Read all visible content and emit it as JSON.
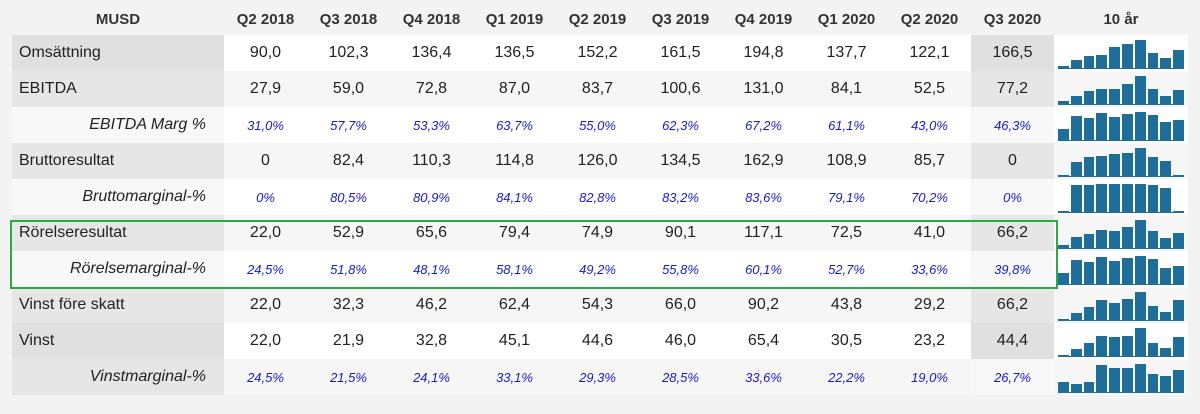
{
  "header": {
    "unit": "MUSD",
    "periods": [
      "Q2 2018",
      "Q3 2018",
      "Q4 2018",
      "Q1 2019",
      "Q2 2019",
      "Q3 2019",
      "Q4 2019",
      "Q1 2020",
      "Q2 2020",
      "Q3 2020"
    ],
    "trend_label": "10 år"
  },
  "colors": {
    "bar": "#1f6d99",
    "highlight": "#2aa84a",
    "pct_text": "#1a1acc"
  },
  "rows": [
    {
      "label": "Omsättning",
      "sub": false,
      "values": [
        "90,0",
        "102,3",
        "136,4",
        "136,5",
        "152,2",
        "161,5",
        "194,8",
        "137,7",
        "122,1",
        "166,5"
      ],
      "spark": [
        0.08,
        0.3,
        0.42,
        0.45,
        0.75,
        0.85,
        1.0,
        0.55,
        0.35,
        0.65
      ]
    },
    {
      "label": "EBITDA",
      "sub": false,
      "values": [
        "27,9",
        "59,0",
        "72,8",
        "87,0",
        "83,7",
        "100,6",
        "131,0",
        "84,1",
        "52,5",
        "77,2"
      ],
      "spark": [
        0.1,
        0.3,
        0.45,
        0.55,
        0.55,
        0.7,
        1.0,
        0.55,
        0.3,
        0.5
      ]
    },
    {
      "label": "EBITDA Marg %",
      "sub": true,
      "values": [
        "31,0%",
        "57,7%",
        "53,3%",
        "63,7%",
        "55,0%",
        "62,3%",
        "67,2%",
        "61,1%",
        "43,0%",
        "46,3%"
      ],
      "spark": [
        0.4,
        0.85,
        0.8,
        0.95,
        0.82,
        0.93,
        1.0,
        0.9,
        0.65,
        0.7
      ]
    },
    {
      "label": "Bruttoresultat",
      "sub": false,
      "values": [
        "0",
        "82,4",
        "110,3",
        "114,8",
        "126,0",
        "134,5",
        "162,9",
        "108,9",
        "85,7",
        "0"
      ],
      "spark": [
        0.05,
        0.5,
        0.68,
        0.7,
        0.77,
        0.83,
        1.0,
        0.67,
        0.53,
        0.05
      ]
    },
    {
      "label": "Bruttomarginal-%",
      "sub": true,
      "values": [
        "0%",
        "80,5%",
        "80,9%",
        "84,1%",
        "82,8%",
        "83,2%",
        "83,6%",
        "79,1%",
        "70,2%",
        "0%"
      ],
      "spark": [
        0.05,
        0.96,
        0.97,
        1.0,
        0.99,
        0.99,
        1.0,
        0.95,
        0.84,
        0.05
      ]
    },
    {
      "label": "Rörelseresultat",
      "sub": false,
      "values": [
        "22,0",
        "52,9",
        "65,6",
        "79,4",
        "74,9",
        "90,1",
        "117,1",
        "72,5",
        "41,0",
        "66,2"
      ],
      "spark": [
        0.1,
        0.4,
        0.5,
        0.65,
        0.6,
        0.75,
        1.0,
        0.6,
        0.35,
        0.55
      ]
    },
    {
      "label": "Rörelsemarginal-%",
      "sub": true,
      "values": [
        "24,5%",
        "51,8%",
        "48,1%",
        "58,1%",
        "49,2%",
        "55,8%",
        "60,1%",
        "52,7%",
        "33,6%",
        "39,8%"
      ],
      "spark": [
        0.4,
        0.85,
        0.8,
        0.96,
        0.82,
        0.93,
        1.0,
        0.88,
        0.56,
        0.66
      ]
    },
    {
      "label": "Vinst före skatt",
      "sub": false,
      "values": [
        "22,0",
        "32,3",
        "46,2",
        "62,4",
        "54,3",
        "66,0",
        "90,2",
        "43,8",
        "29,2",
        "66,2"
      ],
      "spark": [
        0.05,
        0.25,
        0.45,
        0.7,
        0.6,
        0.75,
        1.0,
        0.5,
        0.3,
        0.72
      ]
    },
    {
      "label": "Vinst",
      "sub": false,
      "values": [
        "22,0",
        "21,9",
        "32,8",
        "45,1",
        "44,6",
        "46,0",
        "65,4",
        "30,5",
        "23,2",
        "44,4"
      ],
      "spark": [
        0.05,
        0.25,
        0.45,
        0.7,
        0.68,
        0.7,
        1.0,
        0.45,
        0.3,
        0.68
      ]
    },
    {
      "label": "Vinstmarginal-%",
      "sub": true,
      "values": [
        "24,5%",
        "21,5%",
        "24,1%",
        "33,1%",
        "29,3%",
        "28,5%",
        "33,6%",
        "22,2%",
        "19,0%",
        "26,7%"
      ],
      "spark": [
        0.35,
        0.3,
        0.35,
        0.98,
        0.87,
        0.85,
        1.0,
        0.66,
        0.56,
        0.79
      ]
    }
  ]
}
